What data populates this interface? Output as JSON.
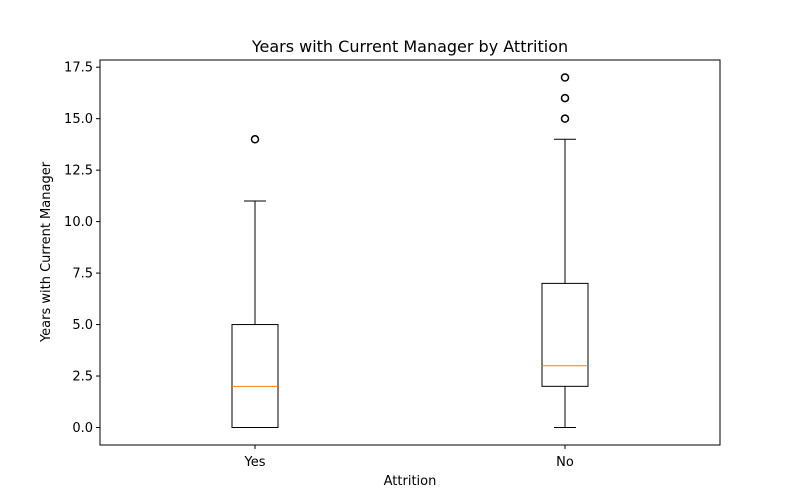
{
  "chart_data": {
    "type": "box",
    "title": "Years with Current Manager by Attrition",
    "xlabel": "Attrition",
    "ylabel": "Years with Current Manager",
    "categories": [
      "Yes",
      "No"
    ],
    "ylim": [
      -0.85,
      17.85
    ],
    "yticks": [
      0.0,
      2.5,
      5.0,
      7.5,
      10.0,
      12.5,
      15.0,
      17.5
    ],
    "ytick_labels": [
      "0.0",
      "2.5",
      "5.0",
      "7.5",
      "10.0",
      "12.5",
      "15.0",
      "17.5"
    ],
    "boxes": [
      {
        "category": "Yes",
        "whisker_low": 0,
        "q1": 0,
        "median": 2,
        "q3": 5,
        "whisker_high": 11,
        "outliers": [
          14
        ]
      },
      {
        "category": "No",
        "whisker_low": 0,
        "q1": 2,
        "median": 3,
        "q3": 7,
        "whisker_high": 14,
        "outliers": [
          15,
          16,
          17
        ]
      }
    ],
    "grid": false,
    "colors": {
      "box": "#000000",
      "median": "#ff7f0e",
      "outlier": "#000000"
    }
  }
}
